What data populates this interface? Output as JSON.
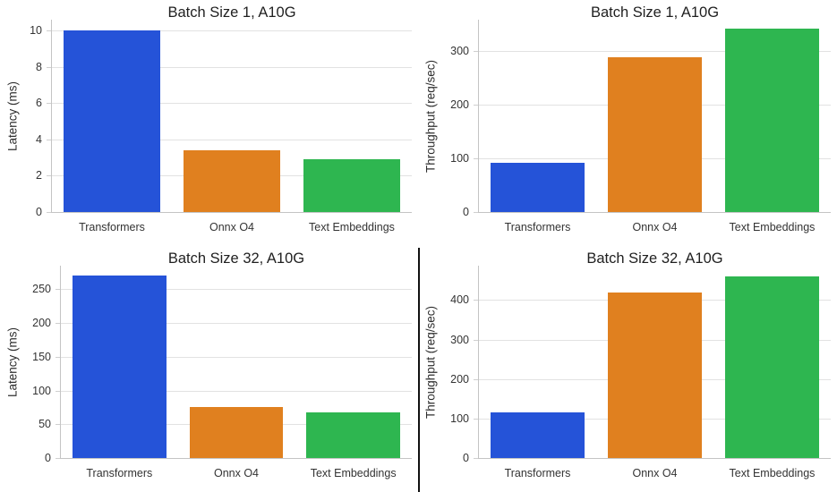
{
  "figure": {
    "background": "#ffffff",
    "categories": [
      "Transformers",
      "Onnx O4",
      "Text Embeddings"
    ],
    "palette": {
      "transformers": "#2553D8",
      "onnx_o4": "#E0801F",
      "text_embeddings": "#2EB650"
    },
    "axis_style": {
      "grid_color": "#e2e2e2",
      "spine_color": "#c4c4c4",
      "tick_color": "#cfcfcf",
      "tick_label_color": "#333333",
      "title_color": "#1f1f1f"
    },
    "divider_color": "#111111"
  },
  "chart_data": [
    {
      "id": "latency-batch-1",
      "type": "bar",
      "title": "Batch Size 1, A10G",
      "xlabel": "",
      "ylabel": "Latency (ms)",
      "categories": [
        "Transformers",
        "Onnx O4",
        "Text Embeddings"
      ],
      "values": [
        10.0,
        3.4,
        2.9
      ],
      "yticks": [
        0,
        2,
        4,
        6,
        8,
        10
      ],
      "ylim": [
        0,
        10.6
      ],
      "grid": true,
      "legend": "none"
    },
    {
      "id": "throughput-batch-1",
      "type": "bar",
      "title": "Batch Size 1, A10G",
      "xlabel": "",
      "ylabel": "Throughput (req/sec)",
      "categories": [
        "Transformers",
        "Onnx O4",
        "Text Embeddings"
      ],
      "values": [
        92,
        288,
        341
      ],
      "yticks": [
        0,
        100,
        200,
        300
      ],
      "ylim": [
        0,
        358
      ],
      "grid": true,
      "legend": "none"
    },
    {
      "id": "latency-batch-32",
      "type": "bar",
      "title": "Batch Size 32, A10G",
      "xlabel": "",
      "ylabel": "Latency (ms)",
      "categories": [
        "Transformers",
        "Onnx O4",
        "Text Embeddings"
      ],
      "values": [
        270,
        75,
        68
      ],
      "yticks": [
        0,
        50,
        100,
        150,
        200,
        250
      ],
      "ylim": [
        0,
        285
      ],
      "grid": true,
      "legend": "none"
    },
    {
      "id": "throughput-batch-32",
      "type": "bar",
      "title": "Batch Size 32, A10G",
      "xlabel": "",
      "ylabel": "Throughput (req/sec)",
      "categories": [
        "Transformers",
        "Onnx O4",
        "Text Embeddings"
      ],
      "values": [
        115,
        420,
        460
      ],
      "yticks": [
        0,
        100,
        200,
        300,
        400
      ],
      "ylim": [
        0,
        487
      ],
      "grid": true,
      "legend": "none"
    }
  ]
}
